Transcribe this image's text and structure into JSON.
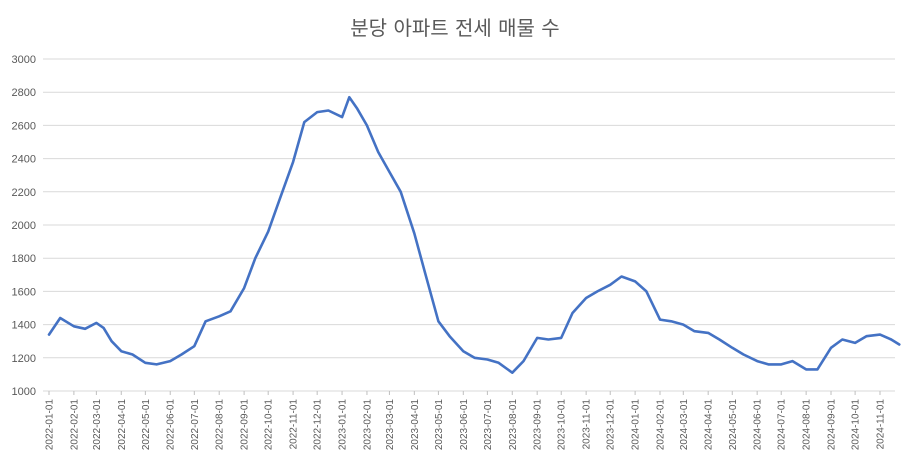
{
  "chart_data": {
    "type": "line",
    "title": "분당 아파트 전세 매물 수",
    "xlabel": "",
    "ylabel": "",
    "ylim": [
      1000,
      3000
    ],
    "y_ticks": [
      "1000",
      "1200",
      "1400",
      "1600",
      "1800",
      "2000",
      "2200",
      "2400",
      "2600",
      "2800",
      "3000"
    ],
    "x_ticks": [
      "2022-01-01",
      "2022-02-01",
      "2022-03-01",
      "2022-04-01",
      "2022-05-01",
      "2022-06-01",
      "2022-07-01",
      "2022-08-01",
      "2022-09-01",
      "2022-10-01",
      "2022-11-01",
      "2022-12-01",
      "2023-01-01",
      "2023-02-01",
      "2023-03-01",
      "2023-04-01",
      "2023-05-01",
      "2023-06-01",
      "2023-07-01",
      "2023-08-01",
      "2023-09-01",
      "2023-10-01",
      "2023-11-01",
      "2023-12-01",
      "2024-01-01",
      "2024-02-01",
      "2024-03-01",
      "2024-04-01",
      "2024-05-01",
      "2024-06-01",
      "2024-07-01",
      "2024-08-01",
      "2024-09-01",
      "2024-10-01",
      "2024-11-01"
    ],
    "grid": true,
    "line_color": "#4472C4",
    "series": [
      {
        "x": [
          "2022-01-01",
          "2022-01-15",
          "2022-02-01",
          "2022-02-15",
          "2022-03-01",
          "2022-03-10",
          "2022-03-20",
          "2022-04-01",
          "2022-04-15",
          "2022-05-01",
          "2022-05-15",
          "2022-06-01",
          "2022-06-15",
          "2022-07-01",
          "2022-07-15",
          "2022-08-01",
          "2022-08-15",
          "2022-09-01",
          "2022-09-15",
          "2022-10-01",
          "2022-10-15",
          "2022-11-01",
          "2022-11-15",
          "2022-12-01",
          "2022-12-15",
          "2023-01-01",
          "2023-01-10",
          "2023-01-20",
          "2023-02-01",
          "2023-02-15",
          "2023-03-01",
          "2023-03-15",
          "2023-04-01",
          "2023-04-15",
          "2023-05-01",
          "2023-05-15",
          "2023-06-01",
          "2023-06-15",
          "2023-07-01",
          "2023-07-15",
          "2023-08-01",
          "2023-08-15",
          "2023-09-01",
          "2023-09-15",
          "2023-10-01",
          "2023-10-15",
          "2023-11-01",
          "2023-11-15",
          "2023-12-01",
          "2023-12-15",
          "2024-01-01",
          "2024-01-15",
          "2024-02-01",
          "2024-02-15",
          "2024-03-01",
          "2024-03-15",
          "2024-04-01",
          "2024-04-15",
          "2024-05-01",
          "2024-05-15",
          "2024-06-01",
          "2024-06-15",
          "2024-07-01",
          "2024-07-15",
          "2024-08-01",
          "2024-08-15",
          "2024-09-01",
          "2024-09-15",
          "2024-10-01",
          "2024-10-15",
          "2024-11-01",
          "2024-11-15",
          "2024-11-25"
        ],
        "values": [
          1340,
          1440,
          1390,
          1375,
          1410,
          1380,
          1300,
          1240,
          1220,
          1170,
          1160,
          1180,
          1220,
          1270,
          1420,
          1450,
          1480,
          1620,
          1800,
          1960,
          2150,
          2380,
          2620,
          2680,
          2690,
          2650,
          2770,
          2700,
          2600,
          2440,
          2320,
          2200,
          1950,
          1700,
          1420,
          1330,
          1240,
          1200,
          1190,
          1170,
          1110,
          1180,
          1320,
          1310,
          1320,
          1470,
          1560,
          1600,
          1640,
          1690,
          1660,
          1600,
          1430,
          1420,
          1400,
          1360,
          1350,
          1310,
          1260,
          1220,
          1180,
          1160,
          1160,
          1180,
          1130,
          1130,
          1260,
          1310,
          1290,
          1330,
          1340,
          1310,
          1280
        ]
      }
    ]
  }
}
